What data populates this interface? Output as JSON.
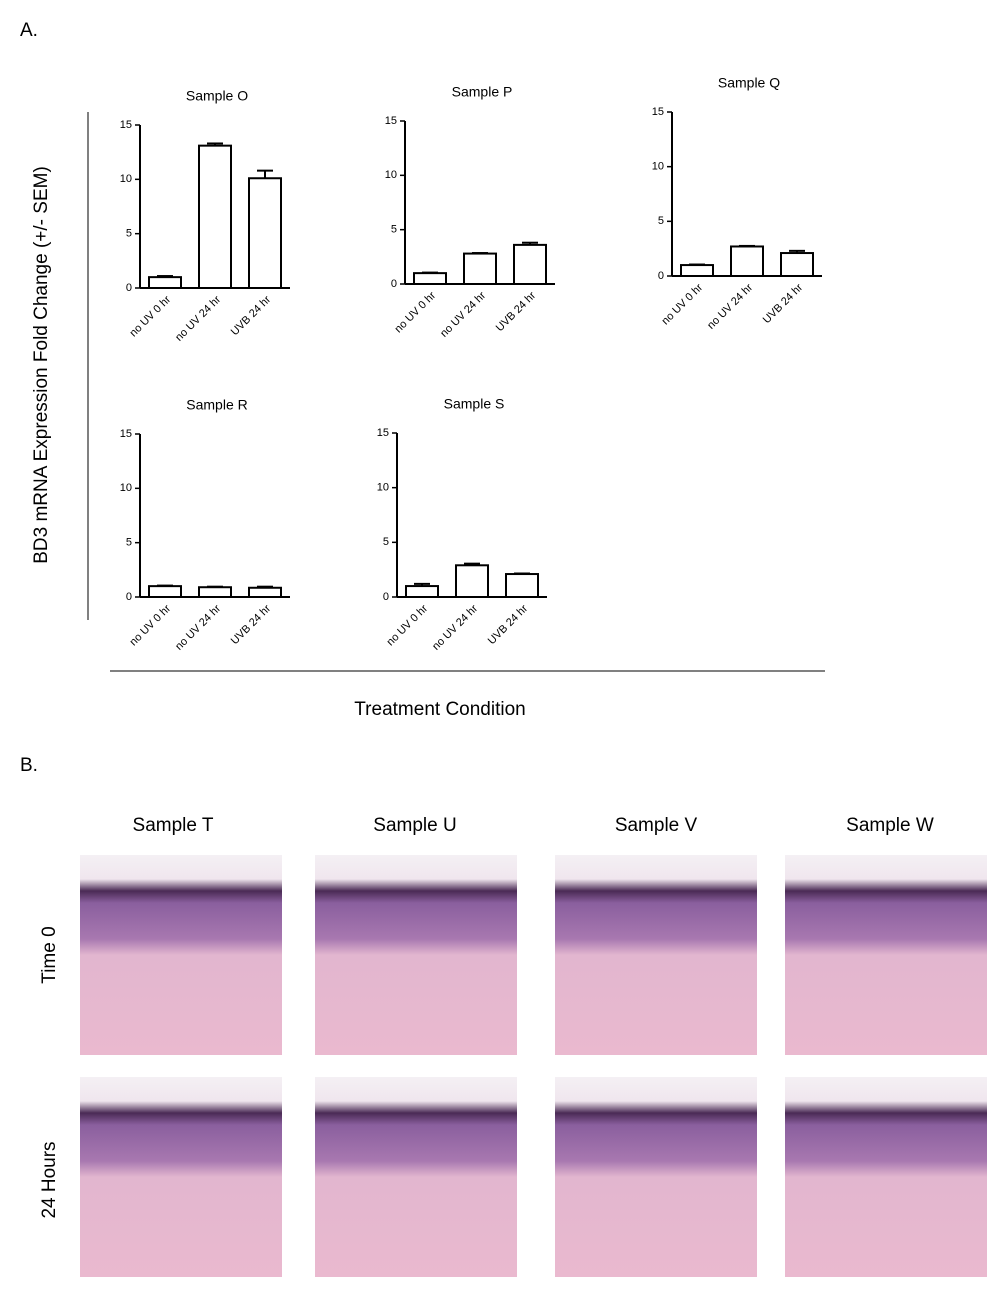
{
  "panel_a": {
    "label": "A.",
    "y_label": "BD3 mRNA Expression Fold Change (+/- SEM)",
    "x_label": "Treatment Condition"
  },
  "chart_data": [
    {
      "type": "bar",
      "title": "Sample O",
      "categories": [
        "no UV 0 hr",
        "no UV 24 hr",
        "UVB 24 hr"
      ],
      "values": [
        1.0,
        13.1,
        10.1
      ],
      "errors": [
        0.1,
        0.2,
        0.7
      ],
      "color": "#ffffff",
      "ylim": [
        0,
        15
      ],
      "yticks": [
        0,
        5,
        10,
        15
      ]
    },
    {
      "type": "bar",
      "title": "Sample P",
      "categories": [
        "no UV 0 hr",
        "no UV 24 hr",
        "UVB 24 hr"
      ],
      "values": [
        1.0,
        2.8,
        3.6
      ],
      "errors": [
        0.05,
        0.05,
        0.2
      ],
      "color": "#ffffff",
      "ylim": [
        0,
        15
      ],
      "yticks": [
        0,
        5,
        10,
        15
      ]
    },
    {
      "type": "bar",
      "title": "Sample Q",
      "categories": [
        "no UV 0 hr",
        "no UV 24 hr",
        "UVB 24 hr"
      ],
      "values": [
        1.0,
        2.7,
        2.1
      ],
      "errors": [
        0.05,
        0.05,
        0.2
      ],
      "color": "#ffffff",
      "ylim": [
        0,
        15
      ],
      "yticks": [
        0,
        5,
        10,
        15
      ]
    },
    {
      "type": "bar",
      "title": "Sample R",
      "categories": [
        "no UV 0 hr",
        "no UV 24 hr",
        "UVB 24 hr"
      ],
      "values": [
        1.0,
        0.9,
        0.85
      ],
      "errors": [
        0.05,
        0.05,
        0.1
      ],
      "color": "#ffffff",
      "ylim": [
        0,
        15
      ],
      "yticks": [
        0,
        5,
        10,
        15
      ]
    },
    {
      "type": "bar",
      "title": "Sample S",
      "categories": [
        "no UV 0 hr",
        "no UV 24 hr",
        "UVB 24 hr"
      ],
      "values": [
        1.0,
        2.9,
        2.1
      ],
      "errors": [
        0.2,
        0.15,
        0.05
      ],
      "color": "#ffffff",
      "ylim": [
        0,
        15
      ],
      "yticks": [
        0,
        5,
        10,
        15
      ]
    }
  ],
  "panel_b": {
    "label": "B.",
    "columns": [
      "Sample T",
      "Sample U",
      "Sample V",
      "Sample W"
    ],
    "rows": [
      "Time 0",
      "24 Hours"
    ]
  }
}
